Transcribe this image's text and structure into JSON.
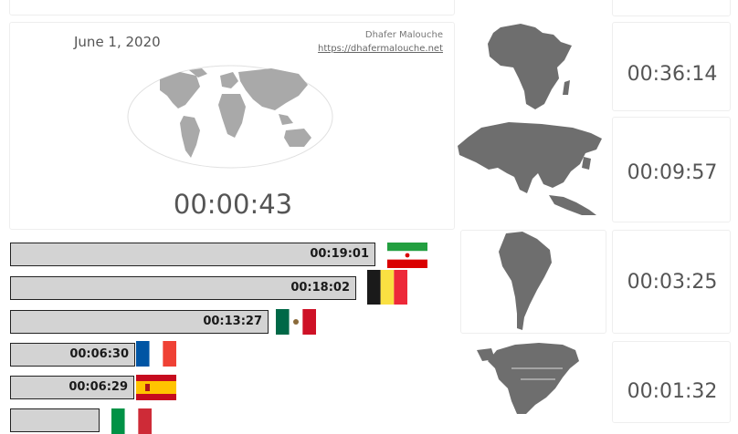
{
  "header": {
    "date": "June 1, 2020",
    "author": "Dhafer Malouche",
    "website": "https://dhafermalouche.net"
  },
  "world": {
    "elapsed": "00:00:43"
  },
  "continents": [
    {
      "name": "Africa",
      "time": "00:36:14",
      "icon": "africa-map"
    },
    {
      "name": "Asia",
      "time": "00:09:57",
      "icon": "asia-map"
    },
    {
      "name": "South America",
      "time": "00:03:25",
      "icon": "south-america-map"
    },
    {
      "name": "North America",
      "time": "00:01:32",
      "icon": "north-america-map"
    }
  ],
  "countries": [
    {
      "flag": "iran-flag",
      "time": "00:19:01",
      "fraction": 1.0
    },
    {
      "flag": "belgium-flag",
      "time": "00:18:02",
      "fraction": 0.948
    },
    {
      "flag": "mexico-flag",
      "time": "00:13:27",
      "fraction": 0.707
    },
    {
      "flag": "france-flag",
      "time": "00:06:30",
      "fraction": 0.342
    },
    {
      "flag": "spain-flag",
      "time": "00:06:29",
      "fraction": 0.341
    },
    {
      "flag": "italy-flag",
      "time": "",
      "fraction": 0.245
    }
  ],
  "colors": {
    "bar_fill": "#d3d3d3",
    "map_gray": "#a9a9a9",
    "continent_gray": "#6e6e6e"
  }
}
